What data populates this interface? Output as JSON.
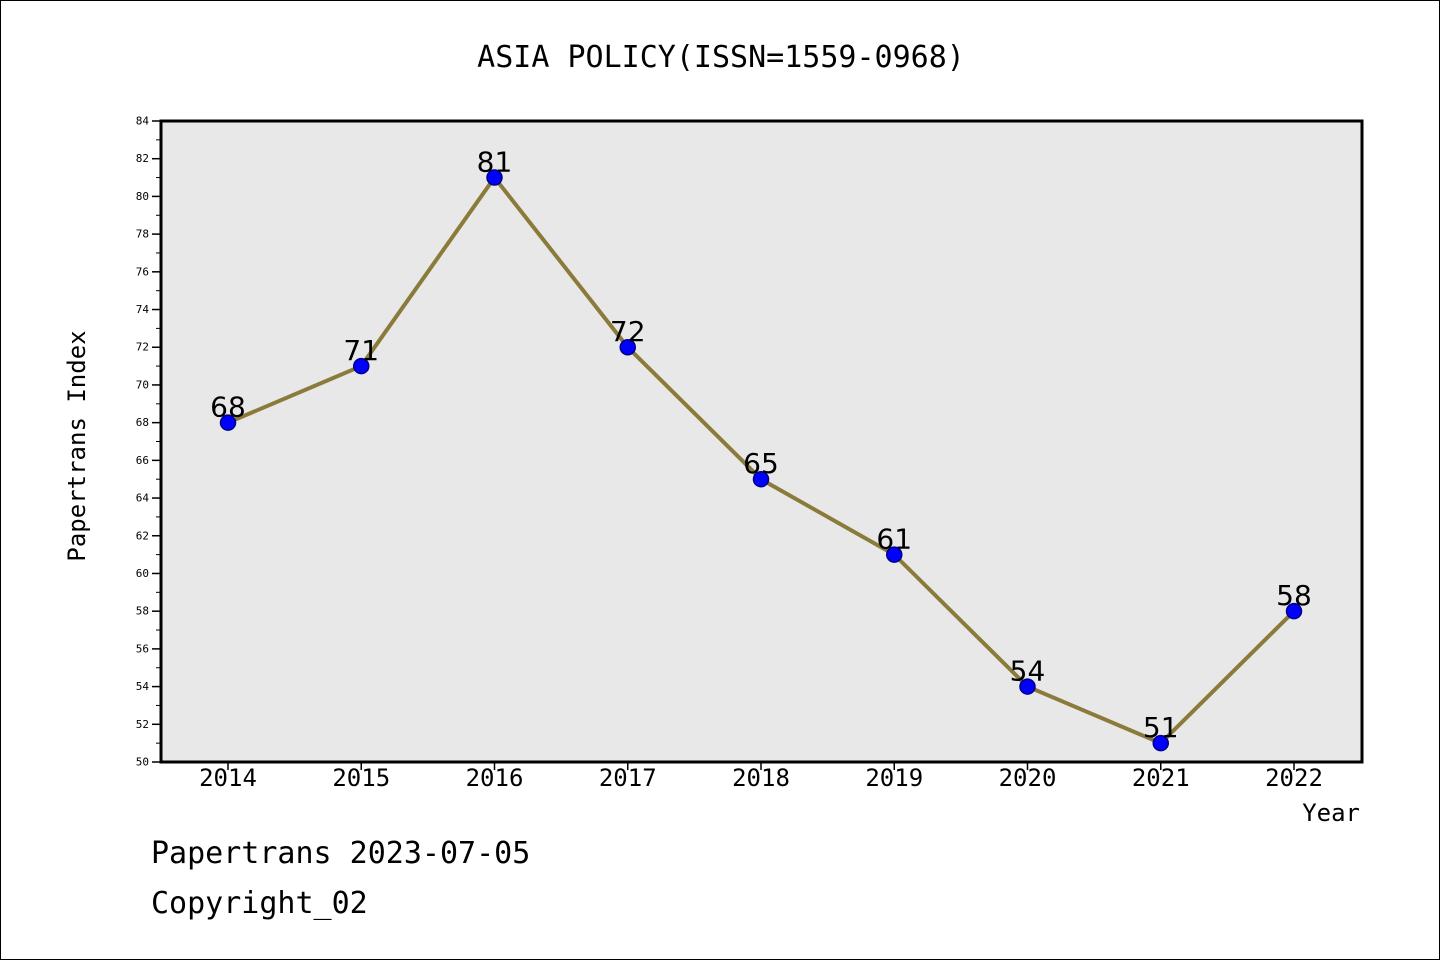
{
  "chart_data": {
    "type": "line",
    "title": "ASIA POLICY(ISSN=1559-0968)",
    "xlabel": "Year",
    "ylabel": "Papertrans Index",
    "categories": [
      "2014",
      "2015",
      "2016",
      "2017",
      "2018",
      "2019",
      "2020",
      "2021",
      "2022"
    ],
    "series": [
      {
        "values": [
          68,
          71,
          81,
          72,
          65,
          61,
          54,
          51,
          58
        ]
      }
    ],
    "data_labels": [
      "68",
      "71",
      "81",
      "72",
      "65",
      "61",
      "54",
      "51",
      "58"
    ],
    "ylim": [
      50,
      84
    ],
    "yticks": [
      50,
      52,
      54,
      56,
      58,
      60,
      62,
      64,
      66,
      68,
      70,
      72,
      74,
      76,
      78,
      80,
      82,
      84
    ],
    "grid": false,
    "colors": {
      "line": "#8B7B3A",
      "marker": "#0000FF",
      "marker_edge": "#00008B",
      "plot_background": "#E8E8E8"
    }
  },
  "footer": {
    "line1": "Papertrans 2023-07-05",
    "line2": "Copyright_02"
  }
}
